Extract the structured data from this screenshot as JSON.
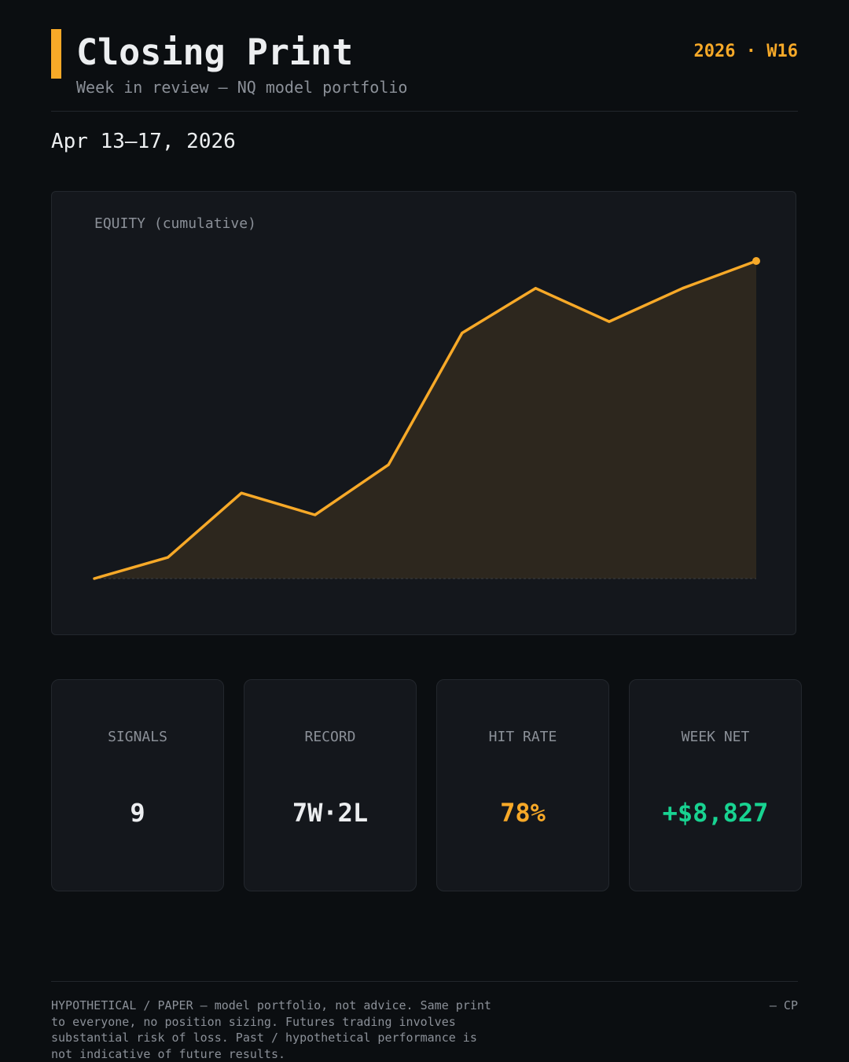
{
  "header": {
    "title": "Closing Print",
    "subtitle": "Week in review — NQ model portfolio",
    "week_tag": "2026 · W16",
    "date_range": "Apr 13–17, 2026"
  },
  "chart_data": {
    "type": "area",
    "title": "EQUITY (cumulative)",
    "x": [
      1,
      2,
      3,
      4,
      5,
      6,
      7,
      8,
      9,
      10
    ],
    "values": [
      0,
      11.7,
      47.4,
      35.3,
      63.1,
      136.1,
      160.9,
      142.4,
      160.9,
      176.0
    ],
    "ylim": [
      0,
      176
    ],
    "grid": false,
    "legend": "none",
    "colors": {
      "line": "#f7a928",
      "fill": "#2d271e",
      "baseline": "#3a3d42"
    }
  },
  "kpis": [
    {
      "label": "SIGNALS",
      "value": "9",
      "color": "#eceef0"
    },
    {
      "label": "RECORD",
      "value": "7W·2L",
      "color": "#eceef0"
    },
    {
      "label": "HIT RATE",
      "value": "78%",
      "color": "#f7a928"
    },
    {
      "label": "WEEK NET",
      "value": "+$8,827",
      "color": "#18d391"
    }
  ],
  "footer": {
    "disclaimer": "HYPOTHETICAL / PAPER — model portfolio, not advice. Same print to everyone, no position sizing. Futures trading involves substantial risk of loss. Past / hypothetical performance is not indicative of future results.",
    "signoff": "— CP"
  },
  "theme": {
    "accent": "#f7a928",
    "positive": "#18d391",
    "background": "#0b0e11",
    "card": "#14171c"
  }
}
